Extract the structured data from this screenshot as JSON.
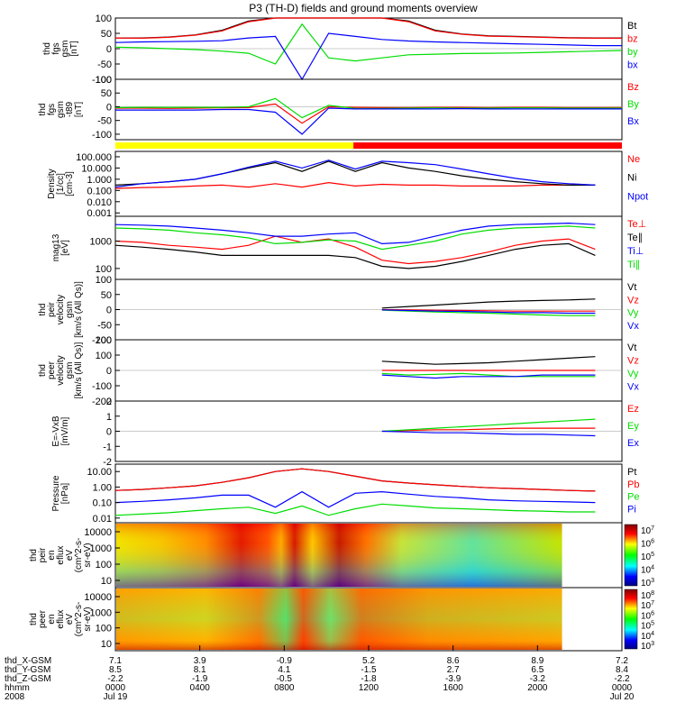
{
  "title": "P3 (TH-D) fields and ground moments overview",
  "colors": {
    "black": "#000000",
    "red": "#ff0000",
    "green": "#00dd00",
    "blue": "#0000ff",
    "yellow": "#ffff00"
  },
  "time_axis": {
    "row_labels": [
      "thd_X-GSM",
      "thd_Y-GSM",
      "thd_Z-GSM",
      "hhmm",
      "2008"
    ],
    "columns": [
      [
        "7.1",
        "8.5",
        "-2.2",
        "0000",
        "Jul 19"
      ],
      [
        "3.9",
        "8.1",
        "-1.9",
        "0400",
        ""
      ],
      [
        "-0.9",
        "4.1",
        "-0.5",
        "0800",
        ""
      ],
      [
        "5.2",
        "-1.5",
        "-1.8",
        "1200",
        ""
      ],
      [
        "8.6",
        "2.7",
        "-3.9",
        "1600",
        ""
      ],
      [
        "8.9",
        "6.5",
        "-3.2",
        "2000",
        ""
      ],
      [
        "7.2",
        "8.4",
        "-2.2",
        "0000",
        "Jul 20"
      ]
    ]
  },
  "chart_data": [
    {
      "type": "line",
      "ylabel": [
        "thd",
        "fgs",
        "gsm",
        "[nT]"
      ],
      "yticks": [
        "100",
        "50",
        "0",
        "-50",
        "-100"
      ],
      "ylim": [
        -100,
        100
      ],
      "legend": [
        {
          "label": "Bt",
          "color": "#000000"
        },
        {
          "label": "bz",
          "color": "#ff0000"
        },
        {
          "label": "by",
          "color": "#00dd00"
        },
        {
          "label": "bx",
          "color": "#0000ff"
        }
      ],
      "series": [
        {
          "name": "Bt",
          "values": [
            35,
            35,
            38,
            45,
            60,
            90,
            100,
            100,
            100,
            100,
            100,
            90,
            60,
            48,
            42,
            40,
            38,
            36,
            35,
            35
          ]
        },
        {
          "name": "bz",
          "values": [
            35,
            34,
            37,
            44,
            58,
            88,
            100,
            100,
            100,
            100,
            100,
            88,
            58,
            47,
            41,
            39,
            37,
            35,
            34,
            34
          ]
        },
        {
          "name": "by",
          "values": [
            5,
            3,
            0,
            -3,
            -8,
            -15,
            -50,
            80,
            -30,
            -40,
            -30,
            -20,
            -18,
            -16,
            -15,
            -14,
            -12,
            -10,
            -8,
            -6
          ]
        },
        {
          "name": "bx",
          "values": [
            20,
            22,
            23,
            24,
            26,
            35,
            40,
            -100,
            50,
            40,
            30,
            25,
            22,
            20,
            18,
            16,
            14,
            12,
            10,
            10
          ]
        }
      ]
    },
    {
      "type": "line",
      "ylabel": [
        "thd",
        "fgs",
        "gsm",
        "-t89",
        "[nT]"
      ],
      "yticks": [
        "100",
        "50",
        "0",
        "-50",
        "-100"
      ],
      "ylim": [
        -120,
        100
      ],
      "legend": [
        {
          "label": "Bz",
          "color": "#ff0000"
        },
        {
          "label": "By",
          "color": "#00dd00"
        },
        {
          "label": "Bx",
          "color": "#0000ff"
        }
      ],
      "series": [
        {
          "name": "Bz",
          "values": [
            -5,
            -5,
            -6,
            -5,
            -4,
            -3,
            10,
            -60,
            0,
            -2,
            -3,
            -3,
            -2,
            -2,
            -3,
            -2,
            -2,
            -3,
            -3,
            -3
          ]
        },
        {
          "name": "By",
          "values": [
            -3,
            -2,
            -2,
            -2,
            -2,
            0,
            30,
            -40,
            5,
            -6,
            -6,
            -5,
            -4,
            -5,
            -5,
            -4,
            -4,
            -5,
            -5,
            -5
          ]
        },
        {
          "name": "Bx",
          "values": [
            -12,
            -12,
            -12,
            -12,
            -10,
            -10,
            -20,
            -100,
            -5,
            -8,
            -8,
            -8,
            -8,
            -7,
            -8,
            -8,
            -8,
            -8,
            -8,
            -8
          ]
        }
      ]
    },
    {
      "type": "heatmap",
      "name": "mode bar",
      "segments": [
        {
          "from": 0,
          "to": 0.47,
          "color": "#ffff00"
        },
        {
          "from": 0.47,
          "to": 1,
          "color": "#ff0000"
        }
      ]
    },
    {
      "type": "line",
      "scale": "log",
      "ylabel": [
        "Density",
        "[1/cc]",
        "[cm-3]"
      ],
      "yticks": [
        "100.000",
        "10.000",
        "1.000",
        "0.100",
        "0.010",
        "0.001"
      ],
      "ylim": [
        0.0005,
        300
      ],
      "legend": [
        {
          "label": "Ne",
          "color": "#ff0000"
        },
        {
          "label": "Ni",
          "color": "#000000"
        },
        {
          "label": "Npot",
          "color": "#0000ff"
        }
      ],
      "series": [
        {
          "name": "Ne",
          "values": [
            0.15,
            0.18,
            0.2,
            0.25,
            0.3,
            0.2,
            0.4,
            0.2,
            0.5,
            0.25,
            0.35,
            0.3,
            0.3,
            0.25,
            0.25,
            0.25,
            0.3,
            0.3,
            0.3,
            null
          ]
        },
        {
          "name": "Ni",
          "values": [
            0.3,
            0.4,
            0.6,
            1.0,
            3.0,
            10,
            30,
            5,
            40,
            5,
            30,
            10,
            5,
            2,
            1.0,
            0.6,
            0.4,
            0.3,
            0.3,
            null
          ]
        },
        {
          "name": "Npot",
          "values": [
            0.2,
            0.4,
            0.6,
            1.0,
            3,
            12,
            40,
            10,
            50,
            8,
            40,
            30,
            20,
            8,
            3,
            1.2,
            0.6,
            0.4,
            0.3,
            null
          ]
        }
      ]
    },
    {
      "type": "line",
      "scale": "log",
      "ylabel": [
        "mag13",
        "[eV]"
      ],
      "yticks": [
        "1000",
        "100"
      ],
      "ylim": [
        40,
        8000
      ],
      "legend": [
        {
          "label": "Te⊥",
          "color": "#ff0000"
        },
        {
          "label": "Te∥",
          "color": "#000000"
        },
        {
          "label": "Ti⊥",
          "color": "#0000ff"
        },
        {
          "label": "Ti∥",
          "color": "#00dd00"
        }
      ],
      "series": [
        {
          "name": "Te⊥",
          "values": [
            1000,
            900,
            700,
            600,
            500,
            700,
            1500,
            900,
            1200,
            600,
            200,
            150,
            180,
            250,
            400,
            700,
            1000,
            1200,
            500,
            null
          ]
        },
        {
          "name": "Te∥",
          "values": [
            700,
            600,
            500,
            400,
            300,
            300,
            300,
            300,
            300,
            250,
            120,
            100,
            120,
            180,
            300,
            500,
            700,
            800,
            300,
            null
          ]
        },
        {
          "name": "Ti⊥",
          "values": [
            4000,
            3800,
            3500,
            3000,
            2500,
            2000,
            1500,
            1500,
            1800,
            2000,
            800,
            900,
            1500,
            2500,
            3500,
            4000,
            4200,
            4500,
            4000,
            null
          ]
        },
        {
          "name": "Ti∥",
          "values": [
            3000,
            2800,
            2500,
            2000,
            1700,
            1300,
            800,
            900,
            1100,
            1000,
            500,
            700,
            1000,
            1800,
            2500,
            3000,
            3200,
            3500,
            3000,
            null
          ]
        }
      ]
    },
    {
      "type": "line",
      "ylabel": [
        "thd",
        "peir",
        "velocity",
        "gsm",
        "[km/s (All Qs)]"
      ],
      "yticks": [
        "100",
        "50",
        "0",
        "-50",
        "-100"
      ],
      "ylim": [
        -100,
        100
      ],
      "legend": [
        {
          "label": "Vt",
          "color": "#000000"
        },
        {
          "label": "Vz",
          "color": "#ff0000"
        },
        {
          "label": "Vy",
          "color": "#00dd00"
        },
        {
          "label": "Vx",
          "color": "#0000ff"
        }
      ],
      "series": [
        {
          "name": "Vt",
          "values": [
            null,
            null,
            null,
            null,
            null,
            null,
            null,
            null,
            null,
            null,
            5,
            10,
            15,
            20,
            25,
            28,
            30,
            32,
            35,
            null
          ]
        },
        {
          "name": "Vz",
          "values": [
            null,
            null,
            null,
            null,
            null,
            null,
            null,
            null,
            null,
            null,
            0,
            -1,
            -2,
            -3,
            -4,
            -5,
            -5,
            -5,
            -5,
            null
          ]
        },
        {
          "name": "Vy",
          "values": [
            null,
            null,
            null,
            null,
            null,
            null,
            null,
            null,
            null,
            null,
            -2,
            -5,
            -8,
            -10,
            -12,
            -15,
            -18,
            -20,
            -20,
            null
          ]
        },
        {
          "name": "Vx",
          "values": [
            null,
            null,
            null,
            null,
            null,
            null,
            null,
            null,
            null,
            null,
            -1,
            -3,
            -5,
            -6,
            -8,
            -10,
            -10,
            -12,
            -12,
            null
          ]
        }
      ]
    },
    {
      "type": "line",
      "ylabel": [
        "thd",
        "peer",
        "velocity",
        "gsm",
        "[km/s (All Qs)]"
      ],
      "yticks": [
        "200",
        "100",
        "0",
        "-100",
        "-200"
      ],
      "ylim": [
        -200,
        200
      ],
      "legend": [
        {
          "label": "Vt",
          "color": "#000000"
        },
        {
          "label": "Vz",
          "color": "#ff0000"
        },
        {
          "label": "Vy",
          "color": "#00dd00"
        },
        {
          "label": "Vx",
          "color": "#0000ff"
        }
      ],
      "series": [
        {
          "name": "Vt",
          "values": [
            null,
            null,
            null,
            null,
            null,
            null,
            null,
            null,
            null,
            null,
            60,
            50,
            40,
            45,
            50,
            60,
            70,
            80,
            90,
            null
          ]
        },
        {
          "name": "Vz",
          "values": [
            null,
            null,
            null,
            null,
            null,
            null,
            null,
            null,
            null,
            null,
            0,
            0,
            0,
            0,
            0,
            0,
            0,
            0,
            0,
            null
          ]
        },
        {
          "name": "Vy",
          "values": [
            null,
            null,
            null,
            null,
            null,
            null,
            null,
            null,
            null,
            null,
            -20,
            -30,
            -25,
            -20,
            -30,
            -40,
            -40,
            -40,
            -40,
            null
          ]
        },
        {
          "name": "Vx",
          "values": [
            null,
            null,
            null,
            null,
            null,
            null,
            null,
            null,
            null,
            null,
            -30,
            -40,
            -50,
            -40,
            -40,
            -40,
            -30,
            -30,
            -30,
            null
          ]
        }
      ]
    },
    {
      "type": "line",
      "ylabel": [
        "E=-VxB",
        "[mV/m]"
      ],
      "yticks": [
        "2",
        "1",
        "0",
        "-1",
        "-2"
      ],
      "ylim": [
        -2,
        2
      ],
      "legend": [
        {
          "label": "Ez",
          "color": "#ff0000"
        },
        {
          "label": "Ey",
          "color": "#00dd00"
        },
        {
          "label": "Ex",
          "color": "#0000ff"
        }
      ],
      "series": [
        {
          "name": "Ez",
          "values": [
            null,
            null,
            null,
            null,
            null,
            null,
            null,
            null,
            null,
            null,
            0,
            0.05,
            0.1,
            0.1,
            0.15,
            0.2,
            0.2,
            0.2,
            0.2,
            null
          ]
        },
        {
          "name": "Ey",
          "values": [
            null,
            null,
            null,
            null,
            null,
            null,
            null,
            null,
            null,
            null,
            0,
            0.1,
            0.2,
            0.3,
            0.4,
            0.5,
            0.6,
            0.7,
            0.8,
            null
          ]
        },
        {
          "name": "Ex",
          "values": [
            null,
            null,
            null,
            null,
            null,
            null,
            null,
            null,
            null,
            null,
            0,
            -0.05,
            -0.1,
            -0.1,
            -0.15,
            -0.2,
            -0.2,
            -0.25,
            -0.3,
            null
          ]
        }
      ]
    },
    {
      "type": "line",
      "scale": "log",
      "ylabel": [
        "Pressure",
        "[nPa]"
      ],
      "yticks": [
        "10.00",
        "1.00",
        "0.10",
        "0.01"
      ],
      "ylim": [
        0.005,
        30
      ],
      "legend": [
        {
          "label": "Pt",
          "color": "#000000"
        },
        {
          "label": "Pb",
          "color": "#ff0000"
        },
        {
          "label": "Pe",
          "color": "#00dd00"
        },
        {
          "label": "Pi",
          "color": "#0000ff"
        }
      ],
      "series": [
        {
          "name": "Pt",
          "values": [
            0.6,
            0.7,
            0.9,
            1.2,
            2,
            4,
            10,
            15,
            10,
            5,
            2.5,
            1.8,
            1.4,
            1.1,
            0.9,
            0.8,
            0.7,
            0.6,
            0.55,
            null
          ]
        },
        {
          "name": "Pb",
          "values": [
            0.6,
            0.7,
            0.9,
            1.2,
            2,
            4,
            10,
            15,
            10,
            5,
            2.5,
            1.8,
            1.4,
            1.1,
            0.9,
            0.8,
            0.7,
            0.6,
            0.55,
            null
          ]
        },
        {
          "name": "Pe",
          "values": [
            0.015,
            0.018,
            0.022,
            0.03,
            0.04,
            0.05,
            0.02,
            0.06,
            0.015,
            0.04,
            0.08,
            0.06,
            0.045,
            0.04,
            0.035,
            0.03,
            0.028,
            0.025,
            0.025,
            null
          ]
        },
        {
          "name": "Pi",
          "values": [
            0.1,
            0.12,
            0.15,
            0.2,
            0.3,
            0.3,
            0.05,
            0.5,
            0.05,
            0.4,
            0.5,
            0.35,
            0.25,
            0.2,
            0.15,
            0.13,
            0.12,
            0.11,
            0.1,
            null
          ]
        }
      ]
    },
    {
      "type": "heatmap",
      "ylabel": [
        "thd",
        "peir",
        "en",
        "eflux",
        "eV",
        "(cm^2-s-",
        "sr-eV)"
      ],
      "yticks": [
        "10000",
        "1000",
        "100",
        "10"
      ],
      "colorbar_ticks": [
        "10^7",
        "10^6",
        "10^5",
        "10^4",
        "10^3"
      ]
    },
    {
      "type": "heatmap",
      "ylabel": [
        "thd",
        "peer",
        "en",
        "eflux",
        "eV",
        "(cm^2-s-",
        "sr-eV)"
      ],
      "yticks": [
        "10000",
        "1000",
        "100",
        "10"
      ],
      "colorbar_ticks": [
        "10^8",
        "10^7",
        "10^6",
        "10^5",
        "10^4",
        "10^3"
      ]
    }
  ]
}
